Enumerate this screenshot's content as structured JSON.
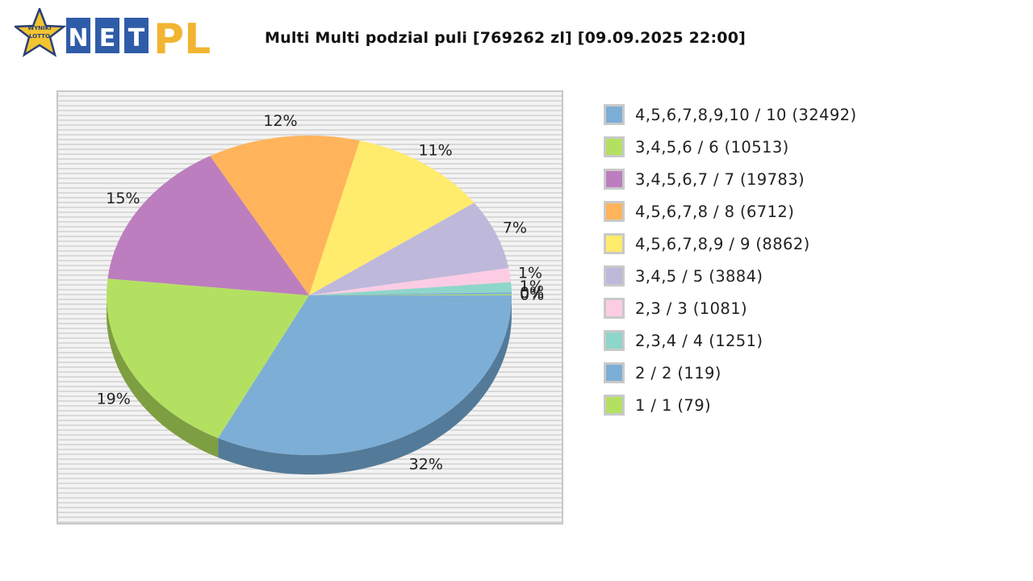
{
  "logo": {
    "badge_text": "WYNIKI LOTTO",
    "text": "NETPL",
    "letters": [
      "N",
      "E",
      "T"
    ],
    "suffix": "PL"
  },
  "title": "Multi Multi podzial puli [769262 zl] [09.09.2025 22:00]",
  "chart_data": {
    "type": "pie",
    "style": "3d-ellipse",
    "title": "Multi Multi podzial puli [769262 zl] [09.09.2025 22:00]",
    "total": "769262 zl",
    "date": "09.09.2025 22:00",
    "legend_position": "right",
    "background": "horizontal-stripes",
    "slices": [
      {
        "label": "4,5,6,7,8,9,10 / 10 (32492)",
        "percent_label": "32%",
        "share": 32,
        "color": "#7DAED6",
        "side_color": "#537A98"
      },
      {
        "label": "3,4,5,6 / 6 (10513)",
        "percent_label": "19%",
        "share": 19,
        "color": "#B4E062",
        "side_color": "#7E9E42"
      },
      {
        "label": "3,4,5,6,7 / 7 (19783)",
        "percent_label": "15%",
        "share": 15,
        "color": "#BC7EBE",
        "side_color": "#855A87"
      },
      {
        "label": "4,5,6,7,8 / 8 (6712)",
        "percent_label": "12%",
        "share": 12,
        "color": "#FFB45C",
        "side_color": "#B37F40"
      },
      {
        "label": "4,5,6,7,8,9 / 9 (8862)",
        "percent_label": "11%",
        "share": 11,
        "color": "#FFEB6C",
        "side_color": "#B3A54C"
      },
      {
        "label": "3,4,5 / 5 (3884)",
        "percent_label": "7%",
        "share": 7,
        "color": "#BEB8DA",
        "side_color": "#858199"
      },
      {
        "label": "2,3 / 3 (1081)",
        "percent_label": "1%",
        "share": 1.4,
        "color": "#FCCCE4",
        "side_color": "#B08FA0"
      },
      {
        "label": "2,3,4 / 4 (1251)",
        "percent_label": "1%",
        "share": 1,
        "color": "#8ED6CA",
        "side_color": "#63968D"
      },
      {
        "label": "2 / 2 (119)",
        "percent_label": "0%",
        "share": 0.2,
        "color": "#7DAED6",
        "side_color": "#537A98"
      },
      {
        "label": "1 / 1 (79)",
        "percent_label": "0%",
        "share": 0.1,
        "color": "#B4E062",
        "side_color": "#7E9E42"
      }
    ]
  }
}
